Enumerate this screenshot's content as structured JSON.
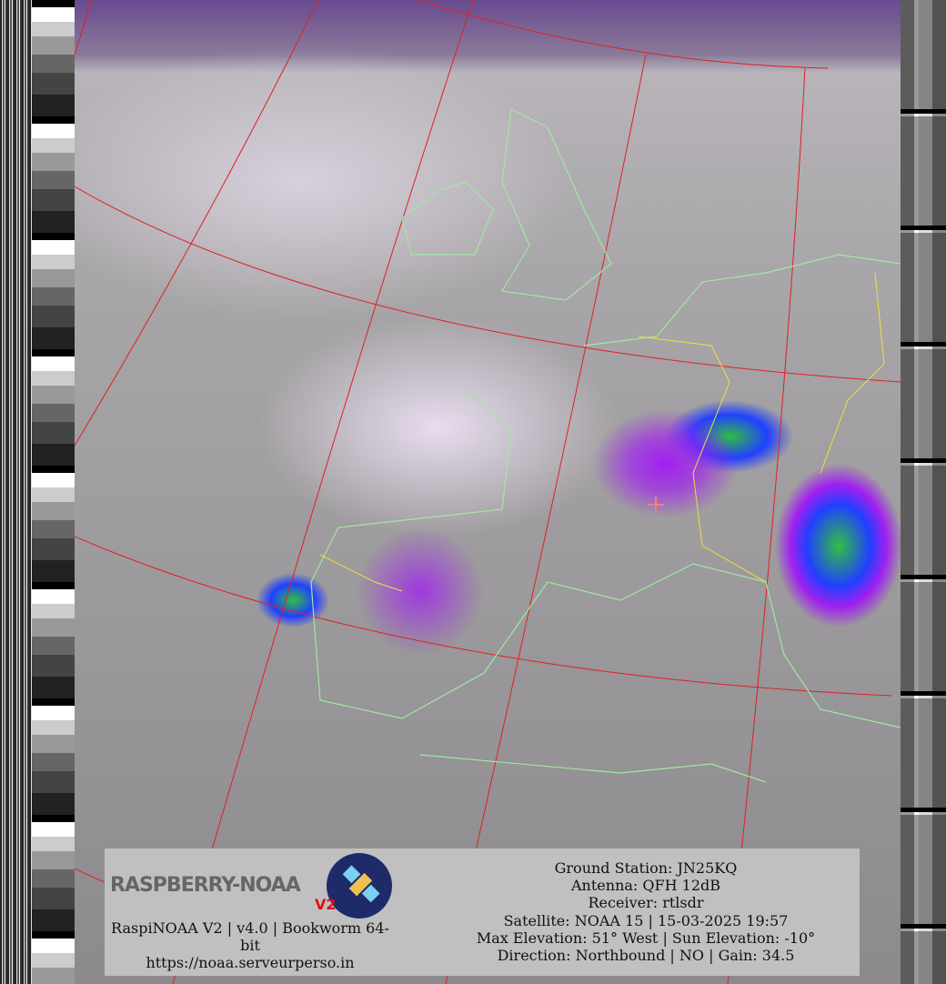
{
  "logo": {
    "text": "RASPBERRY-NOAA",
    "badge": "V2"
  },
  "footer_left": [
    "RaspiNOAA V2 | v4.0 | Bookworm 64-bit",
    "https://noaa.serveurperso.in"
  ],
  "footer_right": [
    "Ground Station: JN25KQ",
    "Antenna: QFH 12dB",
    "Receiver: rtlsdr",
    "Satellite: NOAA 15 | 15-03-2025 19:57",
    "Max Elevation: 51° West | Sun Elevation: -10°",
    "Direction: Northbound | NO | Gain: 34.5"
  ],
  "colors": {
    "grid": "#e02020",
    "coastline": "#a0e8a0",
    "borders": "#f0e040",
    "station_marker": "#f08080"
  }
}
